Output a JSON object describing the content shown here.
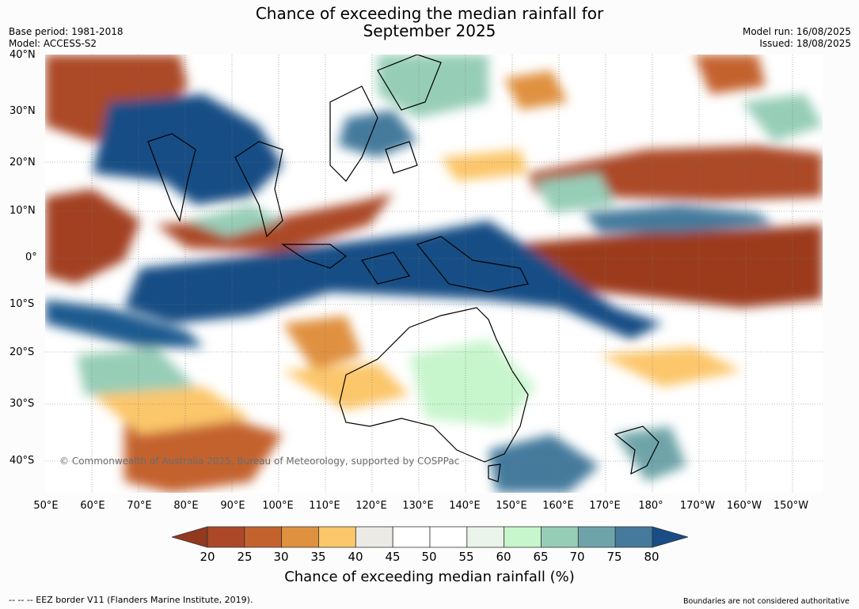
{
  "title": {
    "line1": "Chance of exceeding the median rainfall for",
    "line2": "September 2025"
  },
  "meta": {
    "base_period": "Base period: 1981-2018",
    "model": "Model: ACCESS-S2",
    "model_run": "Model run: 16/08/2025",
    "issued": "Issued: 18/08/2025"
  },
  "map": {
    "copyright": "© Commonwealth of Australia 2025, Bureau of Meteorology, supported by COSPPac",
    "lat_labels": [
      "40°N",
      "30°N",
      "20°N",
      "10°N",
      "0°",
      "10°S",
      "20°S",
      "30°S",
      "40°S"
    ],
    "lon_labels": [
      "50°E",
      "60°E",
      "70°E",
      "80°E",
      "90°E",
      "100°E",
      "110°E",
      "120°E",
      "130°E",
      "140°E",
      "150°E",
      "160°E",
      "170°E",
      "180°",
      "170°W",
      "160°W",
      "150°W"
    ]
  },
  "colorbar": {
    "ticks": [
      "20",
      "25",
      "30",
      "35",
      "40",
      "45",
      "50",
      "55",
      "60",
      "65",
      "70",
      "75",
      "80"
    ],
    "colors": [
      "#93391f",
      "#ac4828",
      "#c4622e",
      "#e0913f",
      "#fcc66a",
      "#eceae4",
      "#ffffff",
      "#ffffff",
      "#eaf4ea",
      "#c7f5cc",
      "#96cdb7",
      "#6ea4a9",
      "#457a9c",
      "#184d85"
    ],
    "title": "Chance of exceeding median rainfall (%)"
  },
  "footer": {
    "eez": "--  --  -- EEZ border V11 (Flanders Marine Institute, 2019).",
    "boundaries": "Boundaries are not considered authoritative"
  }
}
